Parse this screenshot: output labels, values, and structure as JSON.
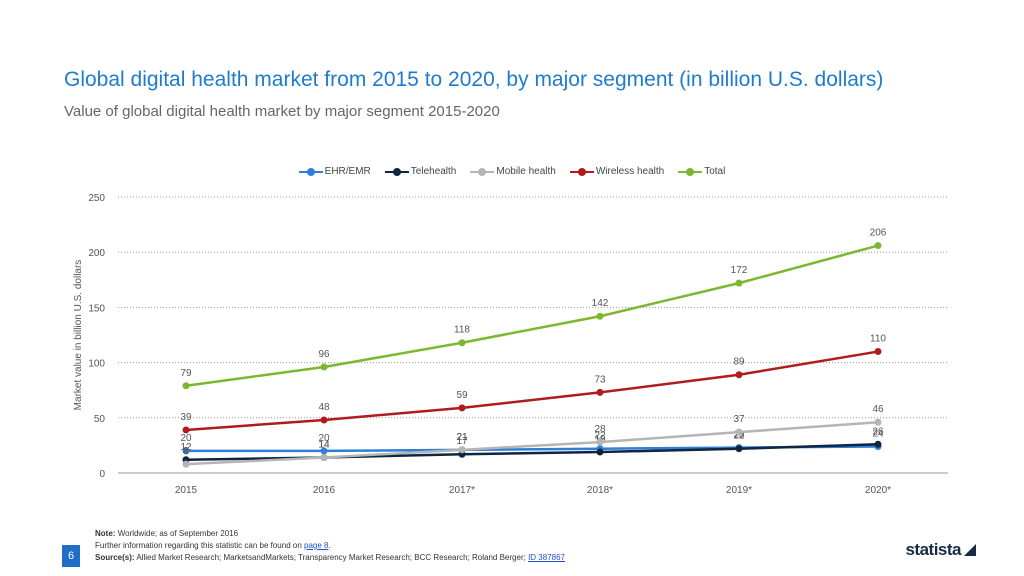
{
  "header": {
    "title": "Global digital health market from 2015 to 2020, by major segment (in billion U.S. dollars)",
    "subtitle": "Value of global digital health market by major segment 2015-2020"
  },
  "chart_data": {
    "type": "line",
    "title": "Global digital health market from 2015 to 2020, by major segment (in billion U.S. dollars)",
    "ylabel": "Market value in billion U.S. dollars",
    "xlabel": "",
    "categories": [
      "2015",
      "2016",
      "2017*",
      "2018*",
      "2019*",
      "2020*"
    ],
    "ylim": [
      0,
      250
    ],
    "yticks": [
      "0",
      "50",
      "100",
      "150",
      "200",
      "250"
    ],
    "grid": true,
    "legend_position": "top-center",
    "series": [
      {
        "name": "EHR/EMR",
        "color": "#2f7ed8",
        "values": [
          20,
          20,
          21,
          22,
          23,
          24
        ]
      },
      {
        "name": "Telehealth",
        "color": "#0f2540",
        "values": [
          12,
          14,
          17,
          19,
          22,
          26
        ]
      },
      {
        "name": "Mobile health",
        "color": "#b5b5b5",
        "values": [
          8,
          14,
          21,
          28,
          37,
          46
        ]
      },
      {
        "name": "Wireless health",
        "color": "#b01c1c",
        "values": [
          39,
          48,
          59,
          73,
          89,
          110
        ]
      },
      {
        "name": "Total",
        "color": "#7cb82f",
        "values": [
          79,
          96,
          118,
          142,
          172,
          206
        ]
      }
    ]
  },
  "footer": {
    "note_label": "Note:",
    "note_text": "Worldwide; as of September 2016",
    "further_text": "Further information regarding this statistic can be found on",
    "further_link": "page 8",
    "source_label": "Source(s):",
    "source_text": "Allied Market Research; MarketsandMarkets; Transparency Market Research; BCC Research; Roland Berger;",
    "source_id": "ID 387867",
    "page_number": "6",
    "brand": "statista"
  }
}
